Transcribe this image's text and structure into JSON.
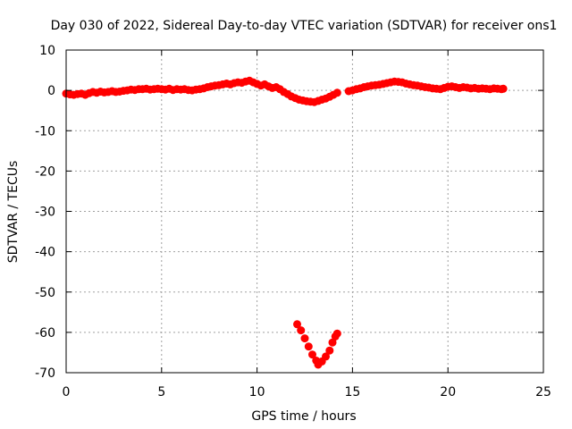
{
  "chart_data": {
    "type": "scatter",
    "title": "Day 030 of 2022, Sidereal Day-to-day VTEC variation (SDTVAR) for receiver ons1",
    "xlabel": "GPS time / hours",
    "ylabel": "SDTVAR / TECUs",
    "xlim": [
      0,
      25
    ],
    "ylim": [
      -70,
      10
    ],
    "x_ticks": [
      0,
      5,
      10,
      15,
      20,
      25
    ],
    "y_ticks": [
      10,
      0,
      -10,
      -20,
      -30,
      -40,
      -50,
      -60,
      -70
    ],
    "grid": true,
    "marker_color": "#ff0000",
    "series": [
      {
        "name": "SDTVAR",
        "points": [
          [
            0.0,
            -0.8
          ],
          [
            0.2,
            -1.0
          ],
          [
            0.4,
            -1.1
          ],
          [
            0.6,
            -0.9
          ],
          [
            0.8,
            -0.8
          ],
          [
            1.0,
            -1.1
          ],
          [
            1.2,
            -0.7
          ],
          [
            1.4,
            -0.4
          ],
          [
            1.6,
            -0.6
          ],
          [
            1.8,
            -0.3
          ],
          [
            2.0,
            -0.5
          ],
          [
            2.2,
            -0.4
          ],
          [
            2.4,
            -0.2
          ],
          [
            2.6,
            -0.4
          ],
          [
            2.8,
            -0.3
          ],
          [
            3.0,
            -0.1
          ],
          [
            3.2,
            0.0
          ],
          [
            3.4,
            0.2
          ],
          [
            3.6,
            0.1
          ],
          [
            3.8,
            0.3
          ],
          [
            4.0,
            0.3
          ],
          [
            4.2,
            0.4
          ],
          [
            4.4,
            0.2
          ],
          [
            4.6,
            0.3
          ],
          [
            4.8,
            0.4
          ],
          [
            5.0,
            0.3
          ],
          [
            5.2,
            0.2
          ],
          [
            5.4,
            0.4
          ],
          [
            5.6,
            0.1
          ],
          [
            5.8,
            0.3
          ],
          [
            6.0,
            0.2
          ],
          [
            6.2,
            0.3
          ],
          [
            6.4,
            0.1
          ],
          [
            6.6,
            0.0
          ],
          [
            6.8,
            0.2
          ],
          [
            7.0,
            0.3
          ],
          [
            7.2,
            0.5
          ],
          [
            7.4,
            0.8
          ],
          [
            7.6,
            1.0
          ],
          [
            7.8,
            1.2
          ],
          [
            8.0,
            1.3
          ],
          [
            8.2,
            1.5
          ],
          [
            8.4,
            1.7
          ],
          [
            8.6,
            1.5
          ],
          [
            8.8,
            1.8
          ],
          [
            9.0,
            2.0
          ],
          [
            9.2,
            1.9
          ],
          [
            9.4,
            2.2
          ],
          [
            9.6,
            2.4
          ],
          [
            9.8,
            2.0
          ],
          [
            10.0,
            1.6
          ],
          [
            10.2,
            1.2
          ],
          [
            10.4,
            1.5
          ],
          [
            10.6,
            1.0
          ],
          [
            10.8,
            0.6
          ],
          [
            11.0,
            0.8
          ],
          [
            11.2,
            0.3
          ],
          [
            11.4,
            -0.4
          ],
          [
            11.6,
            -0.9
          ],
          [
            11.8,
            -1.5
          ],
          [
            12.0,
            -1.9
          ],
          [
            12.2,
            -2.3
          ],
          [
            12.4,
            -2.5
          ],
          [
            12.6,
            -2.7
          ],
          [
            12.8,
            -2.8
          ],
          [
            13.0,
            -2.9
          ],
          [
            13.2,
            -2.6
          ],
          [
            13.4,
            -2.3
          ],
          [
            13.6,
            -2.0
          ],
          [
            13.8,
            -1.6
          ],
          [
            14.0,
            -1.1
          ],
          [
            14.2,
            -0.6
          ],
          [
            12.1,
            -58.0
          ],
          [
            12.3,
            -59.5
          ],
          [
            12.5,
            -61.5
          ],
          [
            12.7,
            -63.5
          ],
          [
            12.9,
            -65.5
          ],
          [
            13.1,
            -67.0
          ],
          [
            13.2,
            -68.0
          ],
          [
            13.4,
            -67.2
          ],
          [
            13.6,
            -66.0
          ],
          [
            13.8,
            -64.5
          ],
          [
            13.95,
            -62.5
          ],
          [
            14.1,
            -61.0
          ],
          [
            14.2,
            -60.3
          ],
          [
            14.8,
            -0.2
          ],
          [
            15.0,
            0.0
          ],
          [
            15.2,
            0.3
          ],
          [
            15.4,
            0.5
          ],
          [
            15.6,
            0.8
          ],
          [
            15.8,
            1.0
          ],
          [
            16.0,
            1.2
          ],
          [
            16.2,
            1.3
          ],
          [
            16.4,
            1.4
          ],
          [
            16.6,
            1.6
          ],
          [
            16.8,
            1.8
          ],
          [
            17.0,
            2.0
          ],
          [
            17.2,
            2.2
          ],
          [
            17.4,
            2.1
          ],
          [
            17.6,
            2.0
          ],
          [
            17.8,
            1.7
          ],
          [
            18.0,
            1.5
          ],
          [
            18.2,
            1.3
          ],
          [
            18.4,
            1.2
          ],
          [
            18.6,
            1.0
          ],
          [
            18.8,
            0.8
          ],
          [
            19.0,
            0.7
          ],
          [
            19.2,
            0.5
          ],
          [
            19.4,
            0.4
          ],
          [
            19.6,
            0.3
          ],
          [
            19.8,
            0.6
          ],
          [
            20.0,
            0.9
          ],
          [
            20.2,
            1.0
          ],
          [
            20.4,
            0.8
          ],
          [
            20.6,
            0.6
          ],
          [
            20.8,
            0.8
          ],
          [
            21.0,
            0.7
          ],
          [
            21.2,
            0.5
          ],
          [
            21.4,
            0.6
          ],
          [
            21.6,
            0.4
          ],
          [
            21.8,
            0.5
          ],
          [
            22.0,
            0.4
          ],
          [
            22.2,
            0.3
          ],
          [
            22.4,
            0.5
          ],
          [
            22.6,
            0.4
          ],
          [
            22.8,
            0.3
          ],
          [
            22.9,
            0.4
          ]
        ]
      }
    ]
  }
}
